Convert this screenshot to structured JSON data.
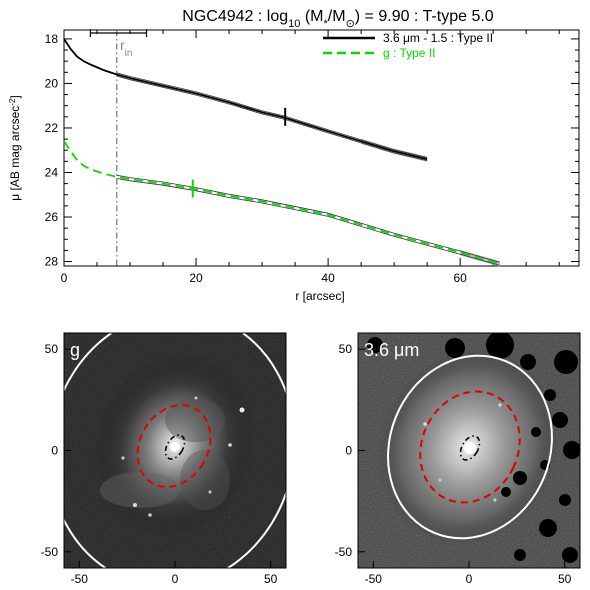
{
  "chart_data": [
    {
      "type": "line",
      "title": "NGC4942 : log10 (M*/M⊙) = 9.90 : T-type 5.0",
      "title_parts": {
        "prefix": "NGC4942 : log",
        "log_sub": "10",
        "mass_open": " (M",
        "star": "*",
        "slash_m": "/M",
        "sun": "⊙",
        "suffix": ") = 9.90 : T-type 5.0"
      },
      "xlabel": "r [arcsec]",
      "ylabel": "μ [AB mag arcsec",
      "ylabel_sup": "-2",
      "ylabel_close": "]",
      "xlim": [
        0,
        78
      ],
      "ylim": [
        28.2,
        17.6
      ],
      "y_inverted": true,
      "x_ticks": [
        0,
        20,
        40,
        60
      ],
      "y_ticks": [
        18,
        20,
        22,
        24,
        26,
        28
      ],
      "grid": false,
      "legend_position": "top-right",
      "r_in_label": "r",
      "r_in_sub": "in",
      "r_in": 8,
      "r_in_error": [
        4,
        12.5
      ],
      "series": [
        {
          "name": "3.6 μm - 1.5 : Type II",
          "color": "#000000",
          "dash": "solid",
          "x": [
            0,
            1,
            2,
            3,
            4,
            6,
            8,
            10,
            15,
            20,
            25,
            30,
            33.5,
            40,
            45,
            50,
            55
          ],
          "y": [
            18.0,
            18.45,
            18.8,
            19.0,
            19.15,
            19.4,
            19.6,
            19.76,
            20.1,
            20.45,
            20.85,
            21.3,
            21.55,
            22.15,
            22.6,
            23.05,
            23.4
          ],
          "break_x": 33.5,
          "break_y": 21.5
        },
        {
          "name": "g : Type II",
          "color": "#00dd00",
          "dash": "dashed",
          "x": [
            0,
            1,
            2,
            3,
            4,
            6,
            8,
            10,
            15,
            20,
            25,
            30,
            40,
            50,
            60,
            66
          ],
          "y": [
            22.6,
            23.05,
            23.45,
            23.7,
            23.85,
            24.05,
            24.2,
            24.3,
            24.5,
            24.75,
            25.05,
            25.3,
            25.9,
            26.8,
            27.6,
            28.1
          ],
          "break_x": 19.5,
          "break_y": 24.72
        }
      ]
    },
    {
      "type": "image",
      "band_label": "g",
      "xlim": [
        -58,
        58
      ],
      "ylim": [
        -58,
        58
      ],
      "x_ticks": [
        -50,
        0,
        50
      ],
      "y_ticks": [
        -50,
        0,
        50
      ],
      "ellipse_colors": {
        "outer": "#ffffff",
        "mid": "#e00000",
        "inner": "#000000"
      }
    },
    {
      "type": "image",
      "band_label": "3.6 μm",
      "xlim": [
        -58,
        58
      ],
      "ylim": [
        -58,
        58
      ],
      "x_ticks": [
        -50,
        0,
        50
      ],
      "y_ticks": [
        -50,
        0,
        50
      ],
      "ellipse_colors": {
        "outer": "#ffffff",
        "mid": "#e00000",
        "inner": "#000000"
      }
    }
  ]
}
